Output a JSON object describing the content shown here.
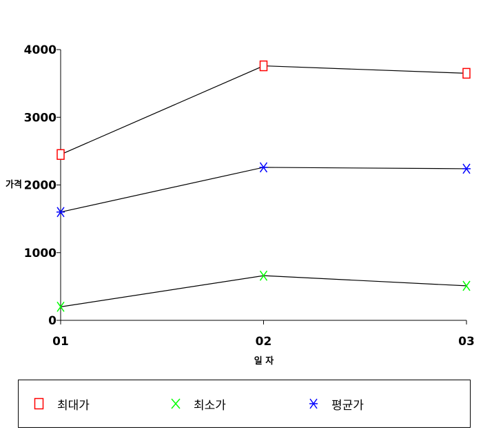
{
  "chart_data": {
    "type": "line",
    "categories": [
      "01",
      "02",
      "03"
    ],
    "xlabel": "일 자",
    "ylabel": "가격",
    "ylim": [
      0,
      4000
    ],
    "yticks": [
      "0",
      "1000",
      "2000",
      "3000",
      "4000"
    ],
    "grid": false,
    "legend_position": "bottom",
    "series": [
      {
        "name": "최대가",
        "values": [
          2450,
          3760,
          3650
        ],
        "marker": "square",
        "color": "#ff0000"
      },
      {
        "name": "최소가",
        "values": [
          200,
          660,
          510
        ],
        "marker": "x",
        "color": "#00ff00"
      },
      {
        "name": "평균가",
        "values": [
          1600,
          2260,
          2240
        ],
        "marker": "asterisk",
        "color": "#0000ff"
      }
    ],
    "line_color": "#000000"
  }
}
